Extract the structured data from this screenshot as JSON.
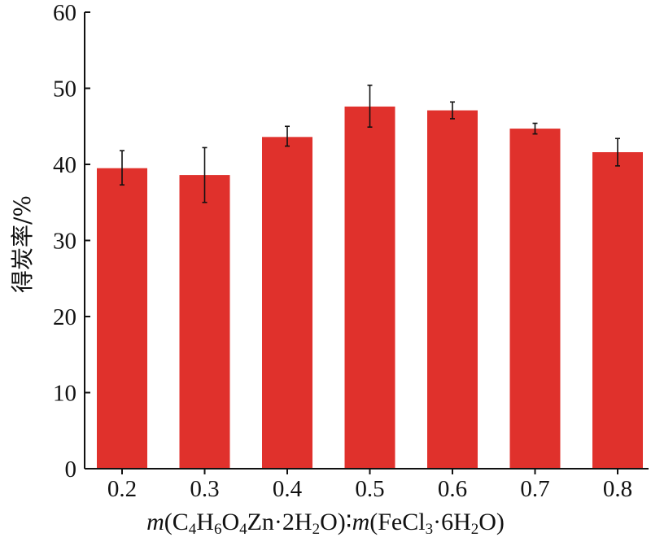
{
  "chart_data": {
    "type": "bar",
    "title": "",
    "ylabel": "得炭率/%",
    "xlabel_parts": {
      "m1": "m",
      "c": "(C",
      "c_sub": "4",
      "h": "H",
      "h_sub": "6",
      "o": "O",
      "o_sub": "4",
      "zn": "Zn·2H",
      "zn_sub": "2",
      "o2": "O)∶",
      "m2": "m",
      "fe": "(FeCl",
      "fe_sub": "3",
      "fe2": "·6H",
      "fe2_sub": "2",
      "end": "O)"
    },
    "categories": [
      "0.2",
      "0.3",
      "0.4",
      "0.5",
      "0.6",
      "0.7",
      "0.8"
    ],
    "values": [
      39.5,
      38.6,
      43.6,
      47.6,
      47.1,
      44.7,
      41.6
    ],
    "error_low": [
      37.3,
      35.0,
      42.4,
      44.9,
      46.0,
      44.0,
      39.8
    ],
    "error_high": [
      41.8,
      42.2,
      45.0,
      50.4,
      48.2,
      45.4,
      43.4
    ],
    "ylim": [
      0,
      60
    ],
    "yticks": [
      0,
      10,
      20,
      30,
      40,
      50,
      60
    ],
    "bar_color": "#e0312c",
    "grid": false,
    "legend": "none"
  }
}
